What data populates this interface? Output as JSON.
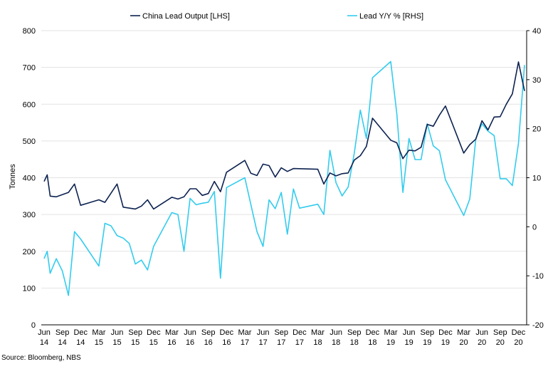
{
  "chart_data": {
    "type": "line",
    "ylabel_left": "Tonnes",
    "ylim_left": [
      0,
      800
    ],
    "yticks_left": [
      "0",
      "100",
      "200",
      "300",
      "400",
      "500",
      "600",
      "700",
      "800"
    ],
    "ylim_right": [
      -20,
      40
    ],
    "yticks_right": [
      "-20",
      "-10",
      "0",
      "10",
      "20",
      "30",
      "40"
    ],
    "x_tick_labels": [
      {
        "month": "Jun",
        "year": "14",
        "t": 0
      },
      {
        "month": "Sep",
        "year": "14",
        "t": 3
      },
      {
        "month": "Dec",
        "year": "14",
        "t": 6
      },
      {
        "month": "Mar",
        "year": "15",
        "t": 9
      },
      {
        "month": "Jun",
        "year": "15",
        "t": 12
      },
      {
        "month": "Sep",
        "year": "15",
        "t": 15
      },
      {
        "month": "Dec",
        "year": "15",
        "t": 18
      },
      {
        "month": "Mar",
        "year": "16",
        "t": 21
      },
      {
        "month": "Jun",
        "year": "16",
        "t": 24
      },
      {
        "month": "Sep",
        "year": "16",
        "t": 27
      },
      {
        "month": "Dec",
        "year": "16",
        "t": 30
      },
      {
        "month": "Mar",
        "year": "17",
        "t": 33
      },
      {
        "month": "Jun",
        "year": "17",
        "t": 36
      },
      {
        "month": "Sep",
        "year": "17",
        "t": 39
      },
      {
        "month": "Dec",
        "year": "17",
        "t": 42
      },
      {
        "month": "Mar",
        "year": "18",
        "t": 45
      },
      {
        "month": "Jun",
        "year": "18",
        "t": 48
      },
      {
        "month": "Sep",
        "year": "18",
        "t": 51
      },
      {
        "month": "Dec",
        "year": "18",
        "t": 54
      },
      {
        "month": "Mar",
        "year": "19",
        "t": 57
      },
      {
        "month": "Jun",
        "year": "19",
        "t": 60
      },
      {
        "month": "Sep",
        "year": "19",
        "t": 63
      },
      {
        "month": "Dec",
        "year": "19",
        "t": 66
      },
      {
        "month": "Mar",
        "year": "20",
        "t": 69
      },
      {
        "month": "Jun",
        "year": "20",
        "t": 72
      },
      {
        "month": "Sep",
        "year": "20",
        "t": 75
      },
      {
        "month": "Dec",
        "year": "20",
        "t": 78
      }
    ],
    "x_range": [
      0,
      79
    ],
    "grid": "horizontal",
    "legend_position": "top",
    "series": [
      {
        "name": "China Lead Output [LHS]",
        "axis": "left",
        "color": "#0d2250",
        "points": [
          [
            0,
            390
          ],
          [
            0.5,
            408
          ],
          [
            1,
            350
          ],
          [
            2,
            348
          ],
          [
            4,
            360
          ],
          [
            5,
            383
          ],
          [
            6,
            325
          ],
          [
            9,
            340
          ],
          [
            10,
            333
          ],
          [
            12,
            383
          ],
          [
            13,
            320
          ],
          [
            15,
            315
          ],
          [
            16,
            323
          ],
          [
            17,
            340
          ],
          [
            18,
            315
          ],
          [
            21,
            347
          ],
          [
            22,
            342
          ],
          [
            23,
            348
          ],
          [
            24,
            370
          ],
          [
            25,
            370
          ],
          [
            26,
            352
          ],
          [
            27,
            357
          ],
          [
            28,
            390
          ],
          [
            29,
            362
          ],
          [
            30,
            415
          ],
          [
            33,
            447
          ],
          [
            34,
            412
          ],
          [
            35,
            406
          ],
          [
            36,
            437
          ],
          [
            37,
            433
          ],
          [
            38,
            402
          ],
          [
            39,
            427
          ],
          [
            40,
            417
          ],
          [
            41,
            425
          ],
          [
            45,
            423
          ],
          [
            46,
            383
          ],
          [
            47,
            413
          ],
          [
            48,
            405
          ],
          [
            49,
            411
          ],
          [
            50,
            413
          ],
          [
            51,
            448
          ],
          [
            52,
            460
          ],
          [
            53,
            485
          ],
          [
            54,
            562
          ],
          [
            57,
            502
          ],
          [
            58,
            495
          ],
          [
            59,
            452
          ],
          [
            60,
            475
          ],
          [
            61,
            473
          ],
          [
            62,
            483
          ],
          [
            63,
            545
          ],
          [
            64,
            540
          ],
          [
            65,
            570
          ],
          [
            66,
            595
          ],
          [
            69,
            467
          ],
          [
            70,
            490
          ],
          [
            71,
            505
          ],
          [
            72,
            555
          ],
          [
            73,
            530
          ],
          [
            74,
            565
          ],
          [
            75,
            566
          ],
          [
            76,
            600
          ],
          [
            77,
            628
          ],
          [
            78,
            715
          ],
          [
            79,
            636
          ]
        ]
      },
      {
        "name": "Lead Y/Y % [RHS]",
        "axis": "right",
        "color": "#33ccee",
        "points": [
          [
            0,
            -6.5
          ],
          [
            0.5,
            -5
          ],
          [
            1,
            -9.5
          ],
          [
            2,
            -6.5
          ],
          [
            3,
            -9
          ],
          [
            4,
            -14
          ],
          [
            5,
            -1
          ],
          [
            6,
            -2.5
          ],
          [
            9,
            -8
          ],
          [
            10,
            0.7
          ],
          [
            11,
            0.2
          ],
          [
            12,
            -1.8
          ],
          [
            13,
            -2.3
          ],
          [
            14,
            -3.4
          ],
          [
            15,
            -7.6
          ],
          [
            16,
            -6.8
          ],
          [
            17,
            -8.8
          ],
          [
            18,
            -4
          ],
          [
            21,
            2.9
          ],
          [
            22,
            2.5
          ],
          [
            23,
            -5
          ],
          [
            24,
            5.8
          ],
          [
            25,
            4.5
          ],
          [
            26,
            4.8
          ],
          [
            27,
            5
          ],
          [
            28,
            7.2
          ],
          [
            29,
            -10.5
          ],
          [
            30,
            8
          ],
          [
            33,
            10
          ],
          [
            35,
            -1
          ],
          [
            36,
            -4
          ],
          [
            37,
            5.5
          ],
          [
            38,
            3.7
          ],
          [
            39,
            7
          ],
          [
            40,
            -1.5
          ],
          [
            41,
            7.7
          ],
          [
            42,
            3.8
          ],
          [
            45,
            4.6
          ],
          [
            46,
            2.5
          ],
          [
            47,
            15.6
          ],
          [
            48,
            9
          ],
          [
            49,
            6.3
          ],
          [
            50,
            8.1
          ],
          [
            51,
            15
          ],
          [
            52,
            23.8
          ],
          [
            53,
            18
          ],
          [
            54,
            30.4
          ],
          [
            57,
            33.7
          ],
          [
            58,
            23
          ],
          [
            59,
            7
          ],
          [
            60,
            18
          ],
          [
            61,
            13.7
          ],
          [
            62,
            13.7
          ],
          [
            63,
            21
          ],
          [
            64,
            16.5
          ],
          [
            65,
            15.5
          ],
          [
            66,
            9.6
          ],
          [
            69,
            2.3
          ],
          [
            70,
            5.7
          ],
          [
            71,
            18
          ],
          [
            72,
            21
          ],
          [
            73,
            19.5
          ],
          [
            74,
            18.6
          ],
          [
            75,
            9.8
          ],
          [
            76,
            9.8
          ],
          [
            77,
            8.4
          ],
          [
            78,
            17
          ],
          [
            79,
            33
          ]
        ]
      }
    ]
  },
  "source": "Source: Bloomberg, NBS"
}
